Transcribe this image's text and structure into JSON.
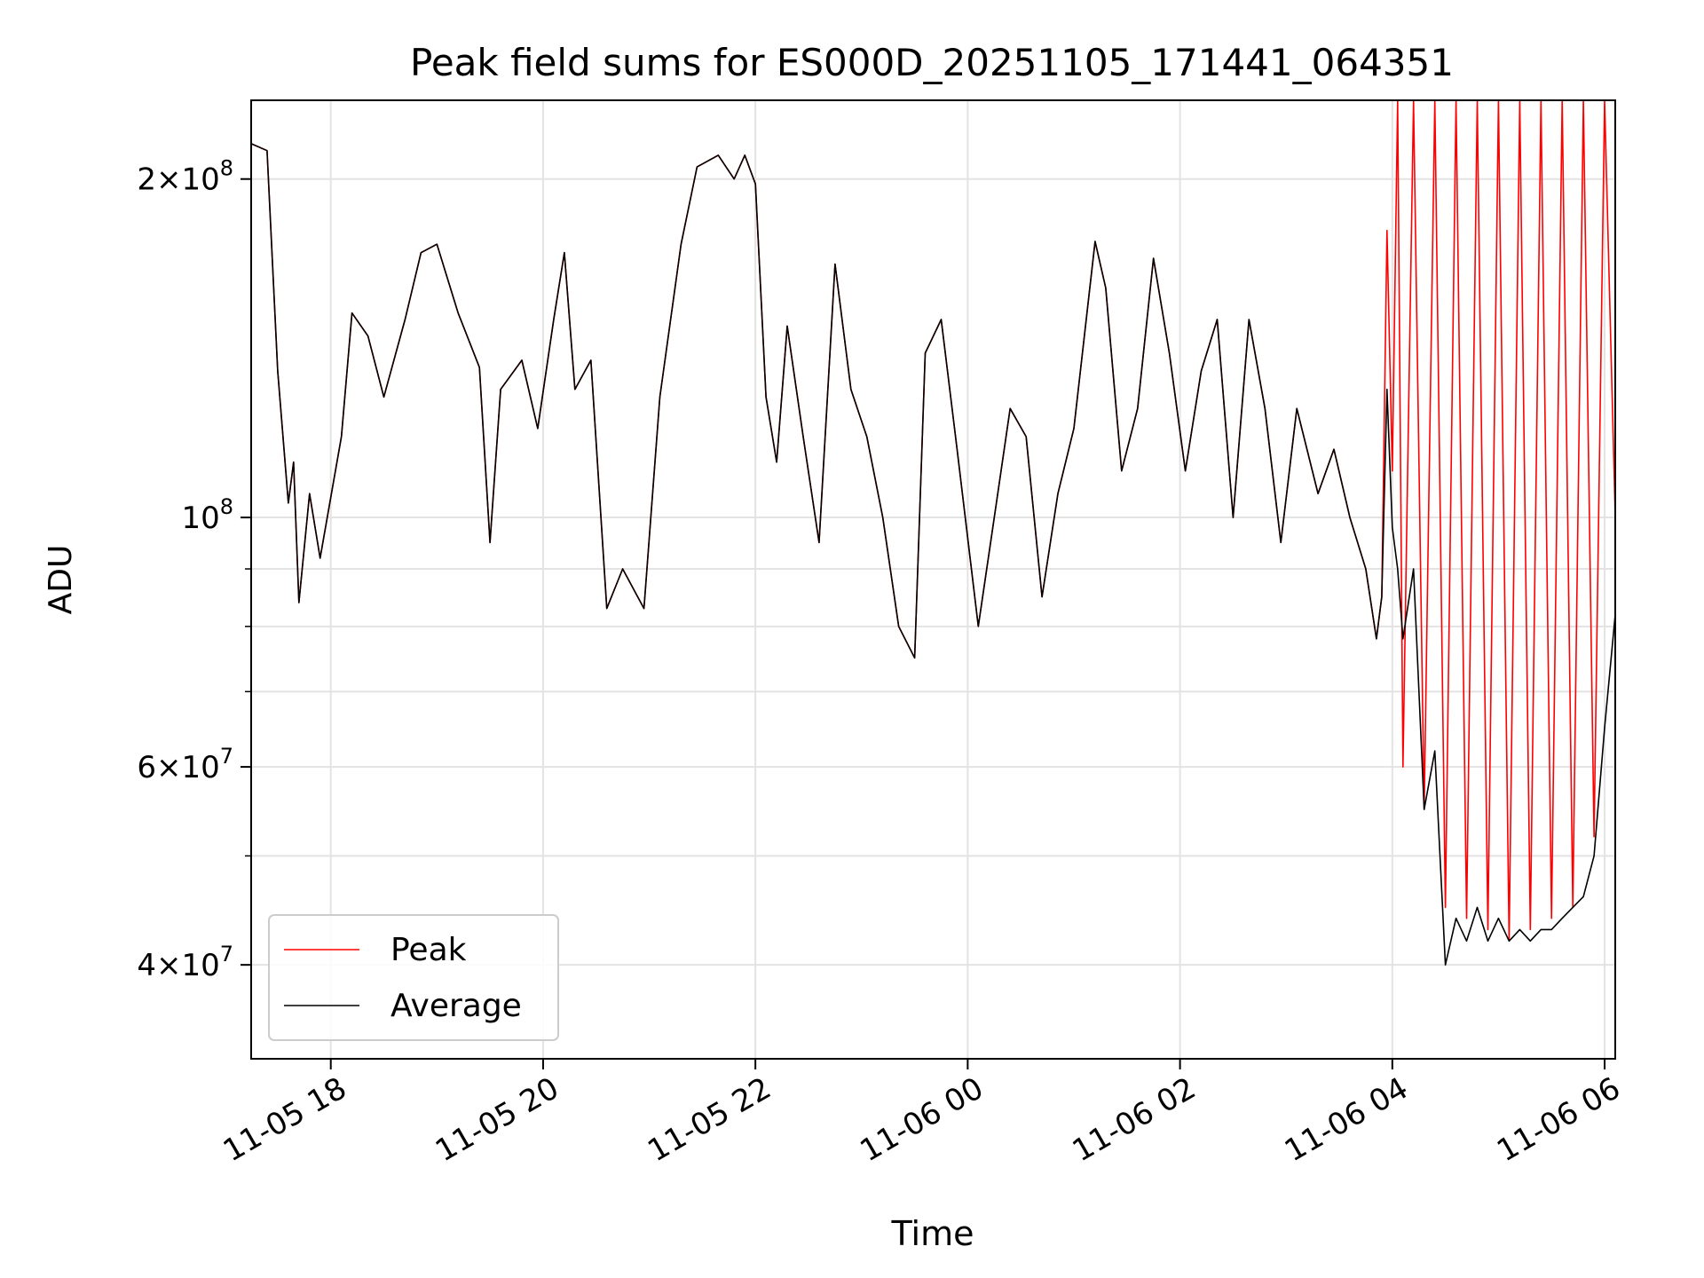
{
  "chart_data": {
    "type": "line",
    "title": "Peak field sums for ES000D_20251105_171441_064351",
    "xlabel": "Time",
    "ylabel": "ADU",
    "yscale": "log",
    "ylim": [
      33000000,
      235000000
    ],
    "xlim_hours": [
      17.25,
      30.1
    ],
    "grid": true,
    "legend": {
      "placement": "lower-left",
      "entries": [
        "Peak",
        "Average"
      ]
    },
    "x_ticks": [
      {
        "hour": 18,
        "label": "11-05 18"
      },
      {
        "hour": 20,
        "label": "11-05 20"
      },
      {
        "hour": 22,
        "label": "11-05 22"
      },
      {
        "hour": 24,
        "label": "11-06 00"
      },
      {
        "hour": 26,
        "label": "11-06 02"
      },
      {
        "hour": 28,
        "label": "11-06 04"
      },
      {
        "hour": 30,
        "label": "11-06 06"
      }
    ],
    "y_major_ticks": [
      {
        "value": 40000000,
        "mantissa": "4",
        "exponent": "7"
      },
      {
        "value": 60000000,
        "mantissa": "6",
        "exponent": "7"
      },
      {
        "value": 100000000,
        "mantissa": "",
        "exponent": "8"
      },
      {
        "value": 200000000,
        "mantissa": "2",
        "exponent": "8"
      }
    ],
    "y_minor_ticks": [
      50000000,
      70000000,
      80000000,
      90000000
    ],
    "series": [
      {
        "name": "Peak",
        "color": "#ff0000",
        "x_hours": [
          17.25,
          17.4,
          17.5,
          17.6,
          17.65,
          17.7,
          17.8,
          17.9,
          18.1,
          18.2,
          18.35,
          18.5,
          18.7,
          18.85,
          19.0,
          19.2,
          19.4,
          19.5,
          19.6,
          19.8,
          19.95,
          20.1,
          20.2,
          20.3,
          20.45,
          20.6,
          20.75,
          20.95,
          21.1,
          21.3,
          21.45,
          21.65,
          21.8,
          21.9,
          22.0,
          22.1,
          22.2,
          22.3,
          22.45,
          22.6,
          22.75,
          22.9,
          23.05,
          23.2,
          23.35,
          23.5,
          23.6,
          23.75,
          23.9,
          24.1,
          24.25,
          24.4,
          24.55,
          24.7,
          24.85,
          25.0,
          25.2,
          25.3,
          25.45,
          25.6,
          25.75,
          25.9,
          26.05,
          26.2,
          26.35,
          26.5,
          26.65,
          26.8,
          26.95,
          27.1,
          27.3,
          27.45,
          27.6,
          27.75,
          27.85,
          27.9,
          27.95,
          28.0,
          28.05,
          28.1,
          28.2,
          28.3,
          28.4,
          28.5,
          28.6,
          28.7,
          28.8,
          28.9,
          29.0,
          29.1,
          29.2,
          29.3,
          29.4,
          29.5,
          29.6,
          29.7,
          29.8,
          29.9,
          30.0,
          30.1
        ],
        "values": [
          215000000,
          212000000,
          135000000,
          103000000,
          112000000,
          84000000,
          105000000,
          92000000,
          118000000,
          152000000,
          145000000,
          128000000,
          150000000,
          172000000,
          175000000,
          152000000,
          136000000,
          95000000,
          130000000,
          138000000,
          120000000,
          150000000,
          172000000,
          130000000,
          138000000,
          83000000,
          90000000,
          83000000,
          128000000,
          175000000,
          205000000,
          210000000,
          200000000,
          210000000,
          198000000,
          128000000,
          112000000,
          148000000,
          118000000,
          95000000,
          168000000,
          130000000,
          118000000,
          100000000,
          80000000,
          75000000,
          140000000,
          150000000,
          115000000,
          80000000,
          100000000,
          125000000,
          118000000,
          85000000,
          105000000,
          120000000,
          176000000,
          160000000,
          110000000,
          125000000,
          170000000,
          140000000,
          110000000,
          135000000,
          150000000,
          100000000,
          150000000,
          125000000,
          95000000,
          125000000,
          105000000,
          115000000,
          100000000,
          90000000,
          78000000,
          85000000,
          180000000,
          110000000,
          235000000,
          60000000,
          235000000,
          55000000,
          235000000,
          45000000,
          235000000,
          44000000,
          235000000,
          43000000,
          235000000,
          42000000,
          235000000,
          43000000,
          235000000,
          44000000,
          235000000,
          45000000,
          235000000,
          52000000,
          235000000,
          100000000
        ]
      },
      {
        "name": "Average",
        "color": "#000000",
        "x_hours": [
          17.25,
          17.4,
          17.5,
          17.6,
          17.65,
          17.7,
          17.8,
          17.9,
          18.1,
          18.2,
          18.35,
          18.5,
          18.7,
          18.85,
          19.0,
          19.2,
          19.4,
          19.5,
          19.6,
          19.8,
          19.95,
          20.1,
          20.2,
          20.3,
          20.45,
          20.6,
          20.75,
          20.95,
          21.1,
          21.3,
          21.45,
          21.65,
          21.8,
          21.9,
          22.0,
          22.1,
          22.2,
          22.3,
          22.45,
          22.6,
          22.75,
          22.9,
          23.05,
          23.2,
          23.35,
          23.5,
          23.6,
          23.75,
          23.9,
          24.1,
          24.25,
          24.4,
          24.55,
          24.7,
          24.85,
          25.0,
          25.2,
          25.3,
          25.45,
          25.6,
          25.75,
          25.9,
          26.05,
          26.2,
          26.35,
          26.5,
          26.65,
          26.8,
          26.95,
          27.1,
          27.3,
          27.45,
          27.6,
          27.75,
          27.85,
          27.9,
          27.95,
          28.0,
          28.05,
          28.1,
          28.2,
          28.3,
          28.4,
          28.5,
          28.6,
          28.7,
          28.8,
          28.9,
          29.0,
          29.1,
          29.2,
          29.3,
          29.4,
          29.5,
          29.6,
          29.7,
          29.8,
          29.9,
          30.0,
          30.1
        ],
        "values": [
          215000000,
          212000000,
          135000000,
          103000000,
          112000000,
          84000000,
          105000000,
          92000000,
          118000000,
          152000000,
          145000000,
          128000000,
          150000000,
          172000000,
          175000000,
          152000000,
          136000000,
          95000000,
          130000000,
          138000000,
          120000000,
          150000000,
          172000000,
          130000000,
          138000000,
          83000000,
          90000000,
          83000000,
          128000000,
          175000000,
          205000000,
          210000000,
          200000000,
          210000000,
          198000000,
          128000000,
          112000000,
          148000000,
          118000000,
          95000000,
          168000000,
          130000000,
          118000000,
          100000000,
          80000000,
          75000000,
          140000000,
          150000000,
          115000000,
          80000000,
          100000000,
          125000000,
          118000000,
          85000000,
          105000000,
          120000000,
          176000000,
          160000000,
          110000000,
          125000000,
          170000000,
          140000000,
          110000000,
          135000000,
          150000000,
          100000000,
          150000000,
          125000000,
          95000000,
          125000000,
          105000000,
          115000000,
          100000000,
          90000000,
          78000000,
          85000000,
          130000000,
          98000000,
          90000000,
          78000000,
          90000000,
          55000000,
          62000000,
          40000000,
          44000000,
          42000000,
          45000000,
          42000000,
          44000000,
          42000000,
          43000000,
          42000000,
          43000000,
          43000000,
          44000000,
          45000000,
          46000000,
          50000000,
          65000000,
          82000000
        ]
      }
    ]
  }
}
